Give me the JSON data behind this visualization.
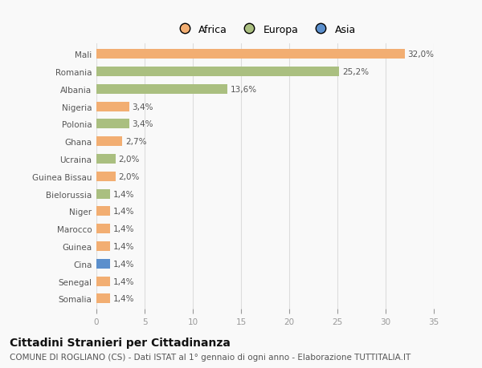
{
  "countries": [
    "Mali",
    "Romania",
    "Albania",
    "Nigeria",
    "Polonia",
    "Ghana",
    "Ucraina",
    "Guinea Bissau",
    "Bielorussia",
    "Niger",
    "Marocco",
    "Guinea",
    "Cina",
    "Senegal",
    "Somalia"
  ],
  "values": [
    32.0,
    25.2,
    13.6,
    3.4,
    3.4,
    2.7,
    2.0,
    2.0,
    1.4,
    1.4,
    1.4,
    1.4,
    1.4,
    1.4,
    1.4
  ],
  "labels": [
    "32,0%",
    "25,2%",
    "13,6%",
    "3,4%",
    "3,4%",
    "2,7%",
    "2,0%",
    "2,0%",
    "1,4%",
    "1,4%",
    "1,4%",
    "1,4%",
    "1,4%",
    "1,4%",
    "1,4%"
  ],
  "continents": [
    "Africa",
    "Europa",
    "Europa",
    "Africa",
    "Europa",
    "Africa",
    "Europa",
    "Africa",
    "Europa",
    "Africa",
    "Africa",
    "Africa",
    "Asia",
    "Africa",
    "Africa"
  ],
  "colors": {
    "Africa": "#F2AE72",
    "Europa": "#AABF80",
    "Asia": "#5B8FCC"
  },
  "legend_labels": [
    "Africa",
    "Europa",
    "Asia"
  ],
  "legend_colors": [
    "#F2AE72",
    "#AABF80",
    "#5B8FCC"
  ],
  "xlim": [
    0,
    35
  ],
  "xticks": [
    0,
    5,
    10,
    15,
    20,
    25,
    30,
    35
  ],
  "title": "Cittadini Stranieri per Cittadinanza",
  "subtitle": "COMUNE DI ROGLIANO (CS) - Dati ISTAT al 1° gennaio di ogni anno - Elaborazione TUTTITALIA.IT",
  "background_color": "#f9f9f9",
  "grid_color": "#dddddd",
  "bar_height": 0.55,
  "label_fontsize": 7.5,
  "tick_fontsize": 7.5,
  "title_fontsize": 10,
  "subtitle_fontsize": 7.5
}
